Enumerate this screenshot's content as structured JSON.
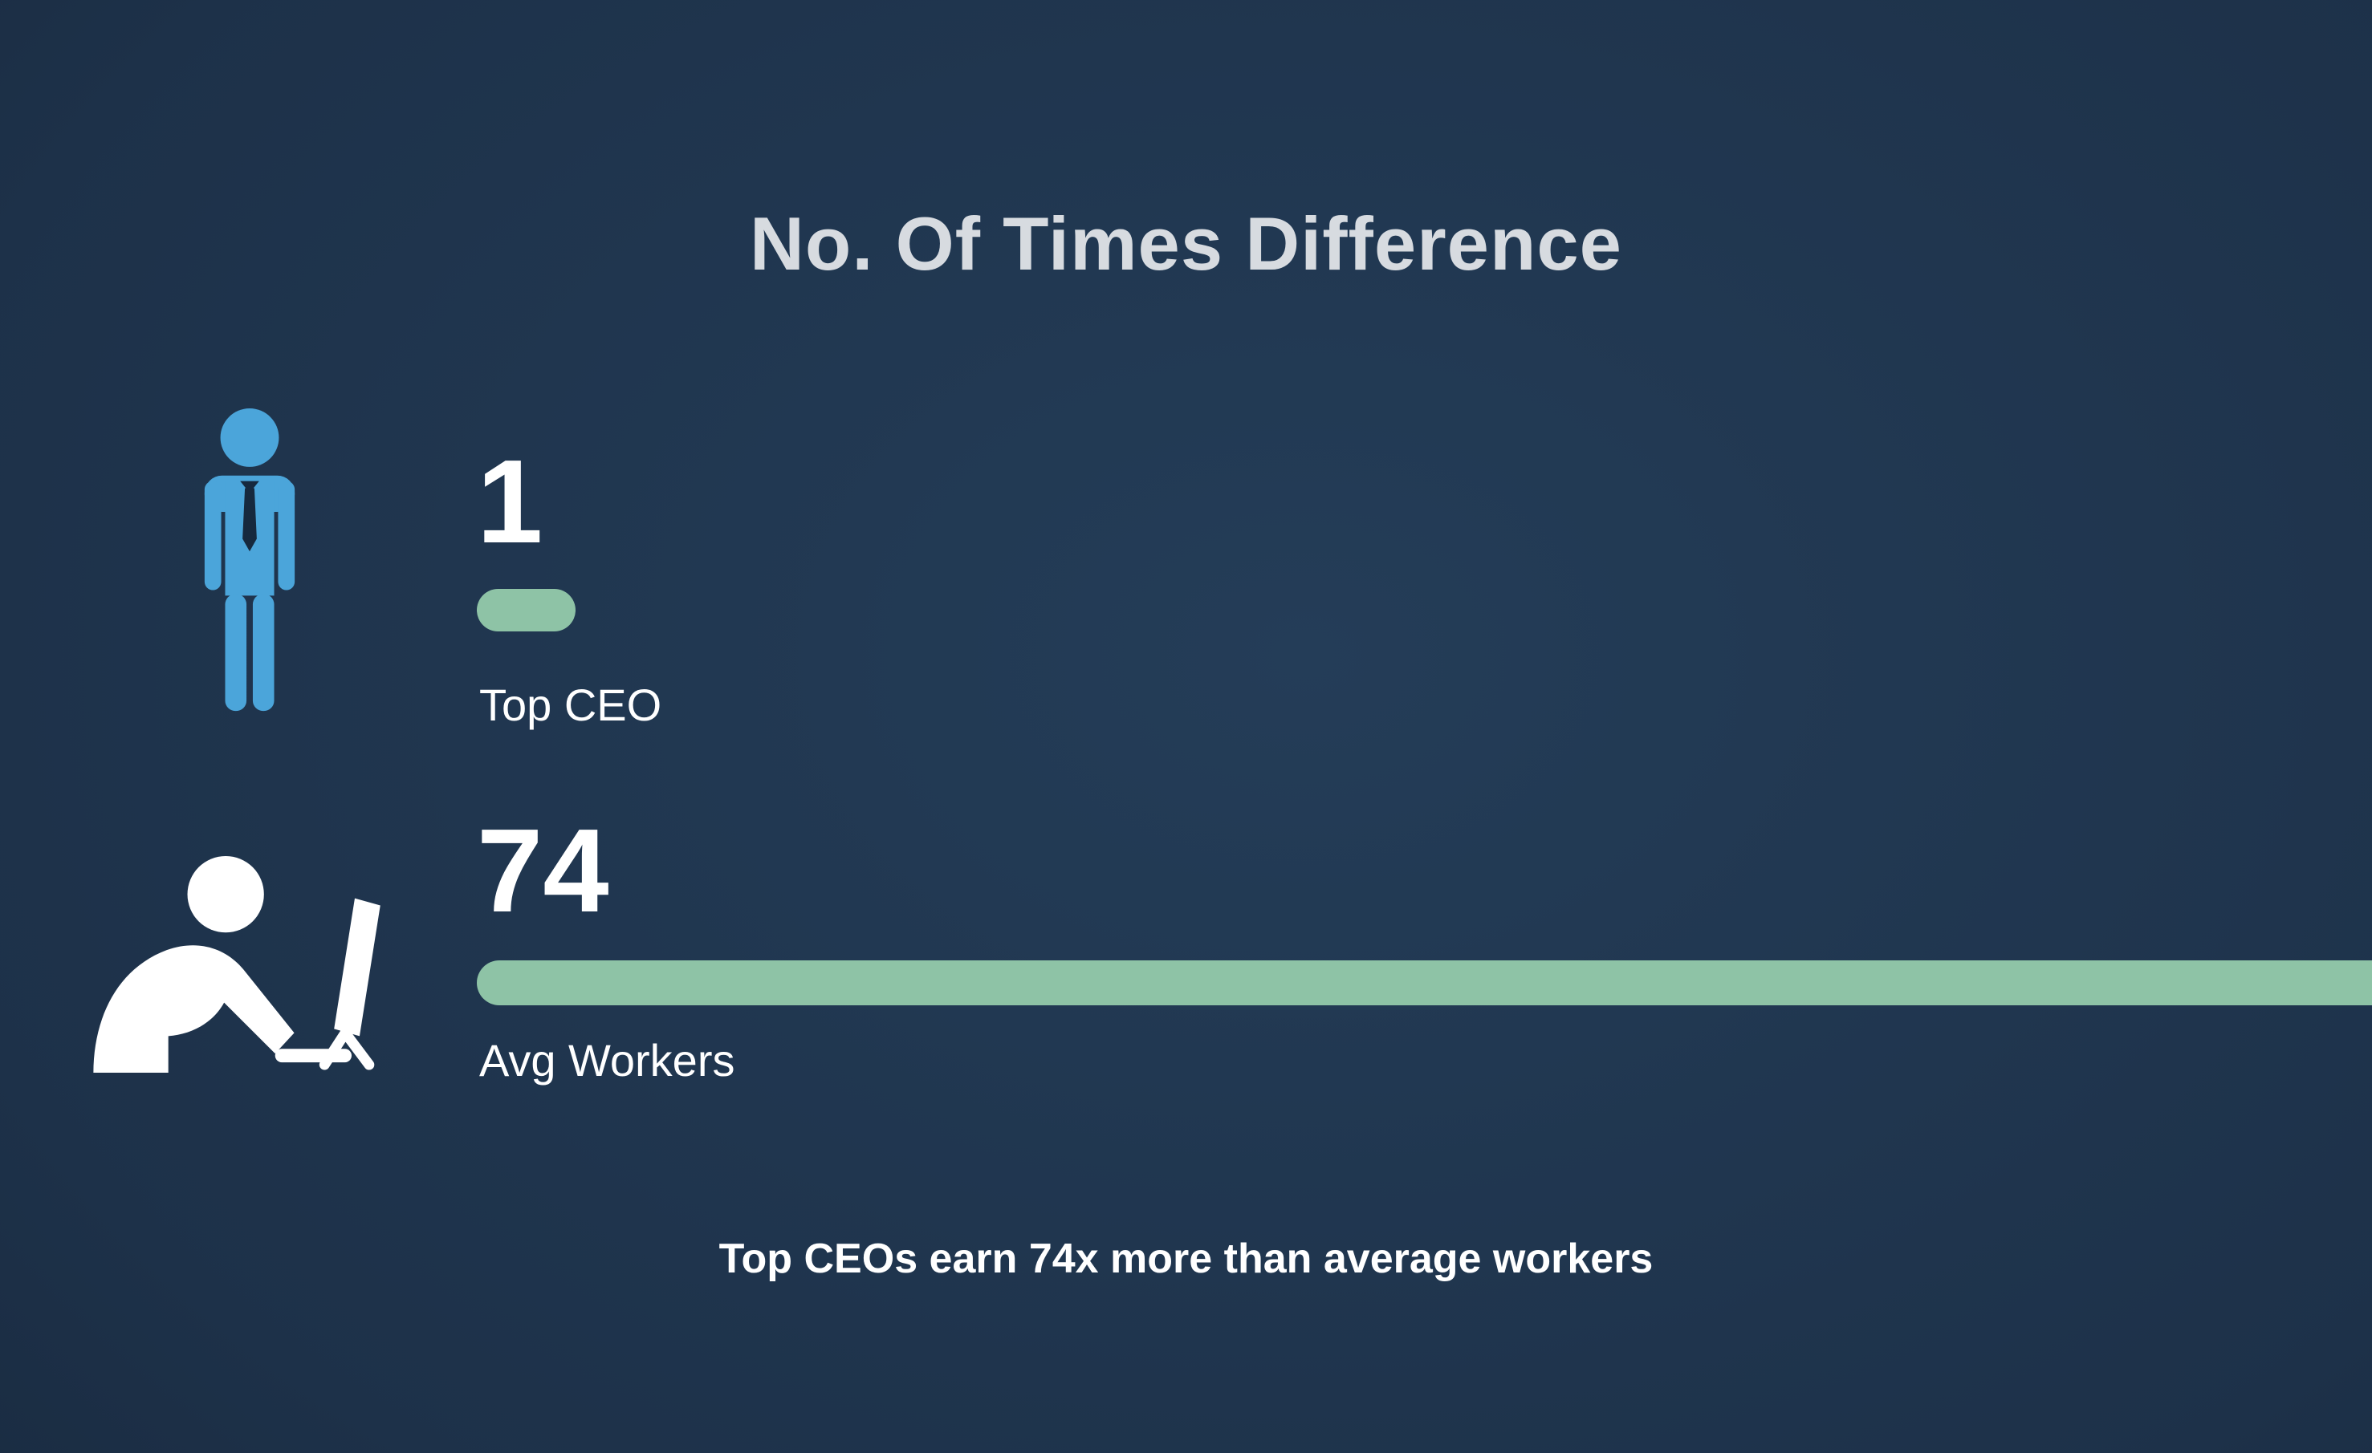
{
  "title": "No. Of Times Difference",
  "rows": [
    {
      "icon": "ceo-icon",
      "value": "1",
      "label": "Top CEO"
    },
    {
      "icon": "worker-icon",
      "value": "74",
      "label": "Avg Workers"
    }
  ],
  "caption": "Top CEOs earn 74x more than average workers",
  "colors": {
    "bar": "#8ec3a6",
    "ceo_icon_blue": "#4ba5da",
    "worker_icon_white": "#ffffff",
    "title_text": "#d7dbe0",
    "body_text": "#ffffff"
  },
  "chart_data": {
    "type": "bar",
    "orientation": "horizontal",
    "title": "No. Of Times Difference",
    "categories": [
      "Top CEO",
      "Avg Workers"
    ],
    "values": [
      1,
      74
    ],
    "value_labels": [
      "1",
      "74"
    ],
    "annotation": "Top CEOs earn 74x more than average workers",
    "bar_color": "#8ec3a6",
    "legend": "none",
    "grid": false,
    "layout_hint": "value labels above bars; 74x bar clipped at right screen edge"
  }
}
